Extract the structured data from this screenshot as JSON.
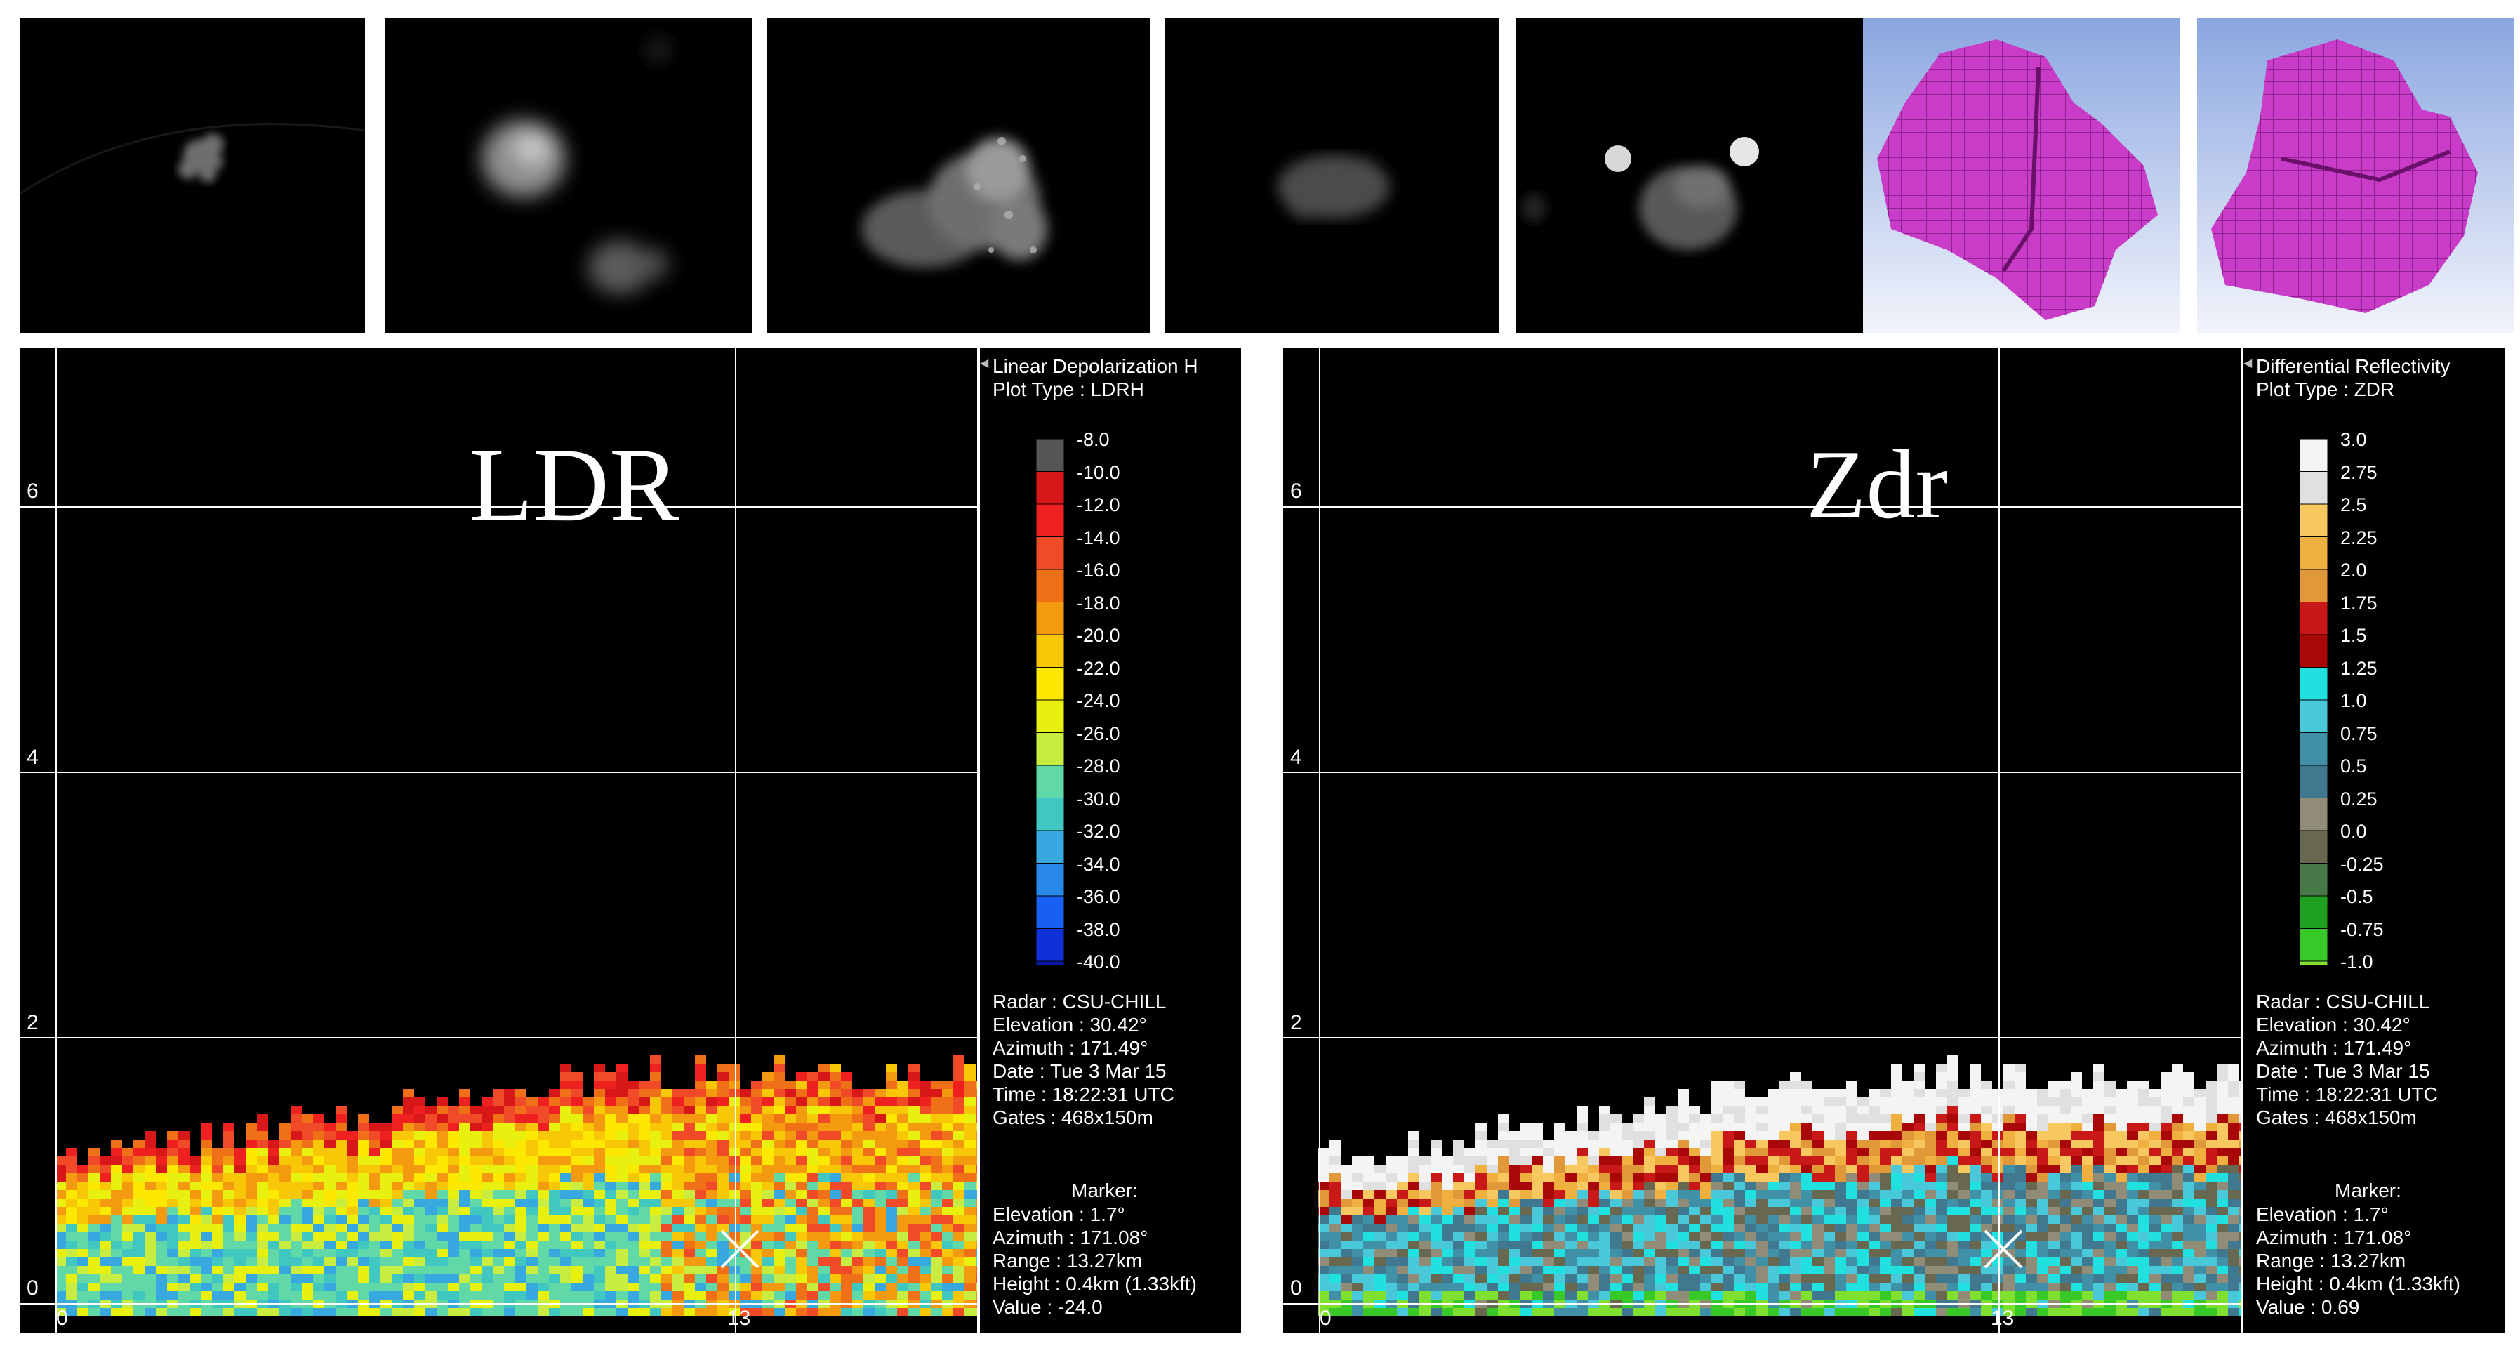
{
  "panels": [
    {
      "name": "ldr",
      "label": "LDR",
      "legend_title_1": "Linear Depolarization H",
      "legend_title_2": "Plot Type : LDRH",
      "scale_labels": [
        "-8.0",
        "-10.0",
        "-12.0",
        "-14.0",
        "-16.0",
        "-18.0",
        "-20.0",
        "-22.0",
        "-24.0",
        "-26.0",
        "-28.0",
        "-30.0",
        "-32.0",
        "-34.0",
        "-36.0",
        "-38.0",
        "-40.0"
      ],
      "scale_colors": [
        "#555555",
        "#d81818",
        "#ee2020",
        "#f04a28",
        "#f07018",
        "#f49a10",
        "#f8c808",
        "#fce800",
        "#e8f010",
        "#c8ec40",
        "#60d8a8",
        "#40c8c0",
        "#38a8e0",
        "#2888e8",
        "#1860f0",
        "#1030d8",
        "#0818a8"
      ],
      "info": [
        "Radar : CSU-CHILL",
        "Elevation : 30.42°",
        "Azimuth : 171.49°",
        "Date : Tue 3 Mar 15",
        "Time : 18:22:31 UTC",
        "Gates : 468x150m"
      ],
      "marker_title": "Marker:",
      "marker": [
        "Elevation : 1.7°",
        "Azimuth : 171.08°",
        "Range : 13.27km",
        "Height : 0.4km (1.33kft)",
        "Value : -24.0"
      ]
    },
    {
      "name": "zdr",
      "label": "Zdr",
      "legend_title_1": "Differential Reflectivity",
      "legend_title_2": "Plot Type : ZDR",
      "scale_labels": [
        "3.0",
        "2.75",
        "2.5",
        "2.25",
        "2.0",
        "1.75",
        "1.5",
        "1.25",
        "1.0",
        "0.75",
        "0.5",
        "0.25",
        "0.0",
        "-0.25",
        "-0.5",
        "-0.75",
        "-1.0"
      ],
      "scale_colors": [
        "#f4f4f4",
        "#e0e0e0",
        "#f8c860",
        "#f0b040",
        "#e09838",
        "#c81818",
        "#a80808",
        "#20e0e0",
        "#48c8d8",
        "#4090a8",
        "#407890",
        "#908c78",
        "#686850",
        "#487848",
        "#20a020",
        "#38c828",
        "#80e030"
      ],
      "info": [
        "Radar : CSU-CHILL",
        "Elevation : 30.42°",
        "Azimuth : 171.49°",
        "Date : Tue 3 Mar 15",
        "Time : 18:22:31 UTC",
        "Gates : 468x150m"
      ],
      "marker_title": "Marker:",
      "marker": [
        "Elevation : 1.7°",
        "Azimuth : 171.08°",
        "Range : 13.27km",
        "Height : 0.4km (1.33kft)",
        "Value : 0.69"
      ]
    }
  ],
  "axes": {
    "y_ticks": [
      "6",
      "4",
      "2",
      "0"
    ],
    "x_ticks": [
      "0",
      "13"
    ]
  },
  "colors": {
    "background": "#000000",
    "grid": "#ffffff",
    "mesh": "#cc33cc",
    "mesh_bg": "#a8bde8"
  }
}
